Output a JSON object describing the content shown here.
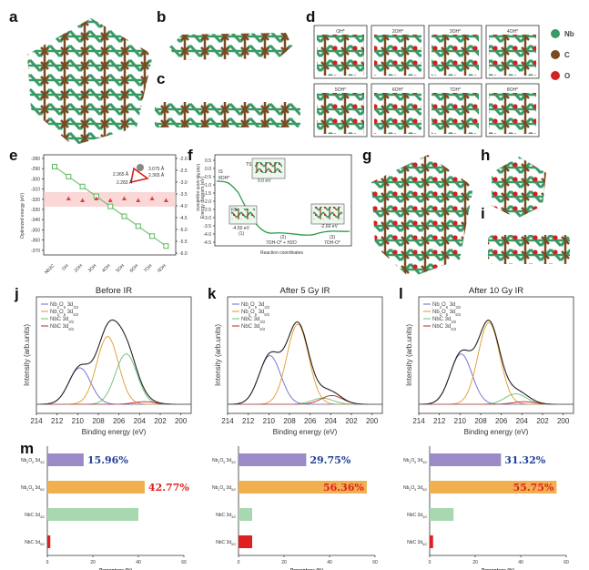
{
  "panel_letters": [
    "a",
    "b",
    "c",
    "d",
    "e",
    "f",
    "g",
    "h",
    "i",
    "j",
    "k",
    "l",
    "m"
  ],
  "d_panel": {
    "labels": [
      "OH*",
      "2OH*",
      "3OH*",
      "4OH*",
      "5OH*",
      "6OH*",
      "7OH*",
      "8OH*"
    ],
    "legend": [
      {
        "name": "Nb",
        "color": "#3a9a66"
      },
      {
        "name": "C",
        "color": "#7a4a22"
      },
      {
        "name": "O",
        "color": "#d42020"
      }
    ]
  },
  "e_panel": {
    "ylabel_left": "Optimized energy (eV)",
    "ylabel_right": "Unit Nb work equations",
    "y_left_ticks": [
      "-280",
      "-290",
      "-300",
      "-310",
      "-320",
      "-330",
      "-340",
      "-350",
      "-360",
      "-370"
    ],
    "y_right_ticks": [
      "-2.0",
      "-2.5",
      "-3.0",
      "-3.5",
      "-4.0",
      "-4.5",
      "-5.0",
      "-5.5",
      "-6.0"
    ],
    "x_ticks": [
      "Nb2C",
      "OH",
      "2OH",
      "3OH",
      "4OH",
      "5OH",
      "6OH",
      "7OH",
      "8OH"
    ],
    "inset_labels": [
      "2.365 Å",
      "3.075 Å",
      "2.365 Å",
      "2.283 Å"
    ]
  },
  "f_panel": {
    "ylabel": "Energy diagram (eV)",
    "xlabel": "Reaction coordinates",
    "y_ticks": [
      "0.5",
      "0.0",
      "-0.5",
      "-1.0",
      "-1.5",
      "-2.0",
      "-2.5",
      "-3.0",
      "-3.5",
      "-4.0",
      "-4.5"
    ],
    "annotations": [
      "IS",
      "8OH*",
      "TS",
      "0.0 eV",
      "FS",
      "-2.60 eV",
      "(1)",
      "-4.50 eV",
      "(2)",
      "7OH-O* + H2O",
      "(3)",
      "7OH-O*"
    ]
  },
  "xps_common": {
    "ylabel": "Intensity (arb.units)",
    "xlabel": "Binding energy (eV)",
    "x_ticks": [
      "214",
      "212",
      "210",
      "208",
      "206",
      "204",
      "202",
      "200"
    ],
    "legend": [
      {
        "name": "Nb2O5 3d3/2",
        "color": "#6a6ac8"
      },
      {
        "name": "Nb2O5 3d5/2",
        "color": "#e09a2a"
      },
      {
        "name": "NbC 3d3/2",
        "color": "#6abf7a"
      },
      {
        "name": "NbC 3d5/2",
        "color": "#c02020"
      }
    ]
  },
  "m_common": {
    "xlabel": "Percentage (%)",
    "x_ticks": [
      "0",
      "20",
      "40",
      "60"
    ],
    "categories": [
      "Nb2O5 3d3/2",
      "Nb2O5 3d5/2",
      "NbC 3d3/2",
      "NbC 3d5/2"
    ],
    "colors": [
      "#9a8ac8",
      "#f0b050",
      "#a8d8b0",
      "#e02020"
    ],
    "label_colors": [
      "#1f3f9a",
      "#e02020"
    ]
  },
  "chart_data": [
    {
      "type": "line",
      "title": "Before IR",
      "xlabel": "Binding energy (eV)",
      "ylabel": "Intensity (arb.units)",
      "xlim": [
        214,
        199
      ],
      "series": [
        {
          "name": "Nb2O5 3d3/2",
          "peak_center": 209.8,
          "height": 0.42
        },
        {
          "name": "Nb2O5 3d5/2",
          "peak_center": 207.1,
          "height": 0.78
        },
        {
          "name": "NbC 3d3/2",
          "peak_center": 205.3,
          "height": 0.58
        },
        {
          "name": "NbC 3d5/2",
          "peak_center": 203.5,
          "height": 0.03
        }
      ]
    },
    {
      "type": "line",
      "title": "After 5 Gy IR",
      "xlabel": "Binding energy (eV)",
      "ylabel": "Intensity (arb.units)",
      "xlim": [
        214,
        199
      ],
      "series": [
        {
          "name": "Nb2O5 3d3/2",
          "peak_center": 209.9,
          "height": 0.56
        },
        {
          "name": "Nb2O5 3d5/2",
          "peak_center": 207.2,
          "height": 0.92
        },
        {
          "name": "NbC 3d3/2",
          "peak_center": 204.8,
          "height": 0.07
        },
        {
          "name": "NbC 3d5/2",
          "peak_center": 203.9,
          "height": 0.1
        }
      ]
    },
    {
      "type": "line",
      "title": "After 10 Gy IR",
      "xlabel": "Binding energy (eV)",
      "ylabel": "Intensity (arb.units)",
      "xlim": [
        214,
        199
      ],
      "series": [
        {
          "name": "Nb2O5 3d3/2",
          "peak_center": 209.9,
          "height": 0.58
        },
        {
          "name": "Nb2O5 3d5/2",
          "peak_center": 207.2,
          "height": 0.94
        },
        {
          "name": "NbC 3d3/2",
          "peak_center": 204.6,
          "height": 0.12
        },
        {
          "name": "NbC 3d5/2",
          "peak_center": 203.8,
          "height": 0.03
        }
      ]
    },
    {
      "type": "bar",
      "orientation": "horizontal",
      "xlabel": "Percentage (%)",
      "xlim": [
        0,
        60
      ],
      "categories": [
        "Nb2O5 3d3/2",
        "Nb2O5 3d5/2",
        "NbC 3d3/2",
        "NbC 3d5/2"
      ],
      "values": [
        15.96,
        42.77,
        40.0,
        1.3
      ],
      "data_labels": [
        "15.96%",
        "42.77%",
        "",
        ""
      ]
    },
    {
      "type": "bar",
      "orientation": "horizontal",
      "xlabel": "Percentage (%)",
      "xlim": [
        0,
        60
      ],
      "categories": [
        "Nb2O5 3d3/2",
        "Nb2O5 3d5/2",
        "NbC 3d3/2",
        "NbC 3d5/2"
      ],
      "values": [
        29.75,
        56.36,
        6.0,
        6.0
      ],
      "data_labels": [
        "29.75%",
        "56.36%",
        "",
        ""
      ]
    },
    {
      "type": "bar",
      "orientation": "horizontal",
      "xlabel": "Percentage (%)",
      "xlim": [
        0,
        60
      ],
      "categories": [
        "Nb2O5 3d3/2",
        "Nb2O5 3d5/2",
        "NbC 3d3/2",
        "NbC 3d5/2"
      ],
      "values": [
        31.32,
        55.75,
        10.5,
        1.5
      ],
      "data_labels": [
        "31.32%",
        "55.75%",
        "",
        ""
      ]
    }
  ]
}
